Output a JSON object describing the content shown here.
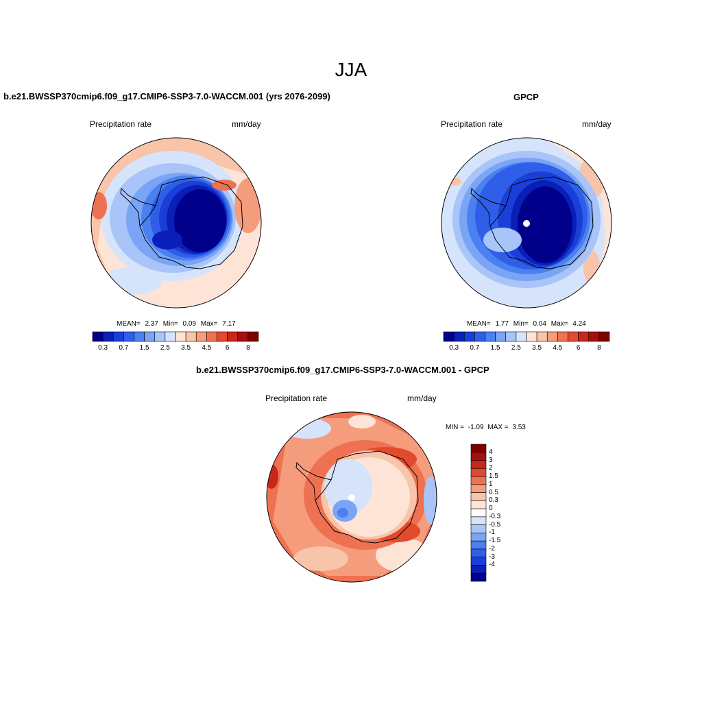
{
  "figure": {
    "title": "JJA"
  },
  "colors": {
    "scale": [
      "#00008b",
      "#0a1fb8",
      "#1a3fd8",
      "#2f5fe8",
      "#4a80f0",
      "#7aa4f4",
      "#a8c4f8",
      "#d6e4fb",
      "#fde4d6",
      "#f8c4aa",
      "#f49c7c",
      "#ee7252",
      "#e24a2e",
      "#c8281a",
      "#a5100c",
      "#800000"
    ],
    "diff_scale": [
      "#00008b",
      "#0a1fb8",
      "#1a3fd8",
      "#2f5fe8",
      "#4a80f0",
      "#7aa4f4",
      "#a8c4f8",
      "#d6e4fb",
      "#ffffff",
      "#fde4d6",
      "#f8c4aa",
      "#f49c7c",
      "#ee7252",
      "#e24a2e",
      "#c8281a",
      "#a5100c",
      "#800000"
    ],
    "coastline": "#000000"
  },
  "panels": [
    {
      "title": "b.e21.BWSSP370cmip6.f09_g17.CMIP6-SSP3-7.0-WACCM.001 (yrs 2076-2099)",
      "left_label": "Precipitation rate",
      "right_label": "mm/day",
      "stats": {
        "mean_label": "MEAN=",
        "mean": "2.37",
        "min_label": "Min=",
        "min": "0.09",
        "max_label": "Max=",
        "max": "7.17"
      },
      "colorbar_ticks": [
        "0.3",
        "0.7",
        "1.5",
        "2.5",
        "3.5",
        "4.5",
        "6",
        "8"
      ]
    },
    {
      "title": "GPCP",
      "left_label": "Precipitation rate",
      "right_label": "mm/day",
      "stats": {
        "mean_label": "MEAN=",
        "mean": "1.77",
        "min_label": "Min=",
        "min": "0.04",
        "max_label": "Max=",
        "max": "4.24"
      },
      "colorbar_ticks": [
        "0.3",
        "0.7",
        "1.5",
        "2.5",
        "3.5",
        "4.5",
        "6",
        "8"
      ]
    },
    {
      "title": "b.e21.BWSSP370cmip6.f09_g17.CMIP6-SSP3-7.0-WACCM.001 - GPCP",
      "left_label": "Precipitation rate",
      "right_label": "mm/day",
      "stats": {
        "min_label": "MIN =",
        "min": "-1.09",
        "max_label": "MAX =",
        "max": "3.53"
      },
      "colorbar_ticks": [
        "4",
        "3",
        "2",
        "1.5",
        "1",
        "0.5",
        "0.3",
        "0",
        "-0.3",
        "-0.5",
        "-1",
        "-1.5",
        "-2",
        "-3",
        "-4"
      ]
    }
  ]
}
